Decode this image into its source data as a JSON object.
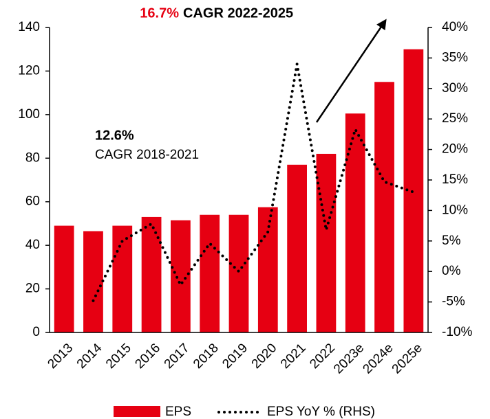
{
  "chart_data": {
    "type": "bar",
    "categories": [
      "2013",
      "2014",
      "2015",
      "2016",
      "2017",
      "2018",
      "2019",
      "2020",
      "2021",
      "2022",
      "2023e",
      "2024e",
      "2025e"
    ],
    "series": [
      {
        "name": "EPS",
        "type": "bar",
        "color": "#e60012",
        "values": [
          49,
          46.5,
          49,
          53,
          51.5,
          54,
          54,
          57.5,
          77,
          82,
          100.5,
          115,
          130
        ]
      },
      {
        "name": "EPS YoY % (RHS)",
        "type": "line",
        "axis": "y2",
        "color": "#000000",
        "values": [
          null,
          -4.8,
          5,
          7.8,
          -2.2,
          4.6,
          0,
          6.5,
          34,
          6.8,
          23.3,
          14.7,
          13
        ]
      }
    ],
    "ylim": [
      0,
      140
    ],
    "yticks": [
      0,
      20,
      40,
      60,
      80,
      100,
      120,
      140
    ],
    "y2lim": [
      -10,
      40
    ],
    "y2ticks": [
      {
        "value": -10,
        "label": "-10%"
      },
      {
        "value": -5,
        "label": "-5%"
      },
      {
        "value": 0,
        "label": "0%"
      },
      {
        "value": 5,
        "label": "5%"
      },
      {
        "value": 10,
        "label": "10%"
      },
      {
        "value": 15,
        "label": "15%"
      },
      {
        "value": 20,
        "label": "20%"
      },
      {
        "value": 25,
        "label": "25%"
      },
      {
        "value": 30,
        "label": "30%"
      },
      {
        "value": 35,
        "label": "35%"
      },
      {
        "value": 40,
        "label": "40%"
      }
    ],
    "annotations": [
      "16.7%",
      "CAGR 2022-2025",
      "12.6%",
      "CAGR 2018-2021"
    ],
    "legend": "bottom"
  }
}
